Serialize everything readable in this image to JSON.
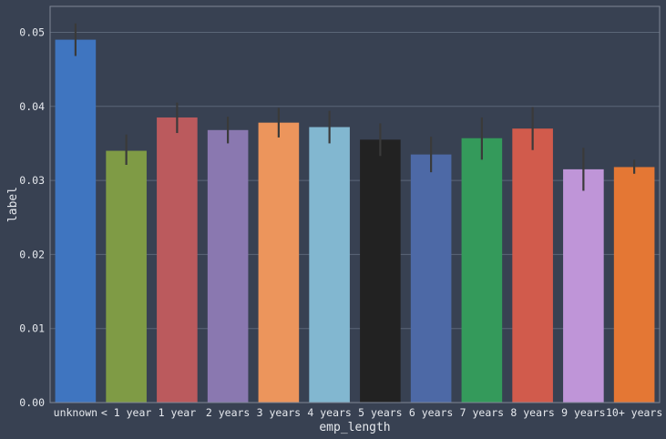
{
  "chart_data": {
    "type": "bar",
    "xlabel": "emp_length",
    "ylabel": "label",
    "ylim": [
      0,
      0.0535
    ],
    "yticks": [
      "0.00",
      "0.01",
      "0.02",
      "0.03",
      "0.04",
      "0.05"
    ],
    "grid": true,
    "categories": [
      "unknown",
      "< 1 year",
      "1 year",
      "2 years",
      "3 years",
      "4 years",
      "5 years",
      "6 years",
      "7 years",
      "8 years",
      "9 years",
      "10+ years"
    ],
    "values": [
      0.049,
      0.034,
      0.0385,
      0.0368,
      0.0378,
      0.0372,
      0.0355,
      0.0335,
      0.0357,
      0.037,
      0.0315,
      0.0318
    ],
    "error_low": [
      0.0468,
      0.0321,
      0.0364,
      0.035,
      0.0358,
      0.035,
      0.0333,
      0.0311,
      0.0328,
      0.0341,
      0.0286,
      0.0309
    ],
    "error_high": [
      0.0512,
      0.0362,
      0.0405,
      0.0386,
      0.0398,
      0.0394,
      0.0377,
      0.0359,
      0.0385,
      0.0399,
      0.0344,
      0.0328
    ],
    "colors": [
      "#3f75c0",
      "#7f9b45",
      "#bb5a5d",
      "#8a78b0",
      "#ec955c",
      "#82b7d0",
      "#222222",
      "#4d69a6",
      "#349a5b",
      "#d15b4c",
      "#bf95d8",
      "#e47734"
    ]
  },
  "theme": {
    "background": "#384152",
    "grid": "#5b6678",
    "frame": "#7f8796",
    "text": "#e6e9ee",
    "errorbar": "#3a3a3a"
  }
}
